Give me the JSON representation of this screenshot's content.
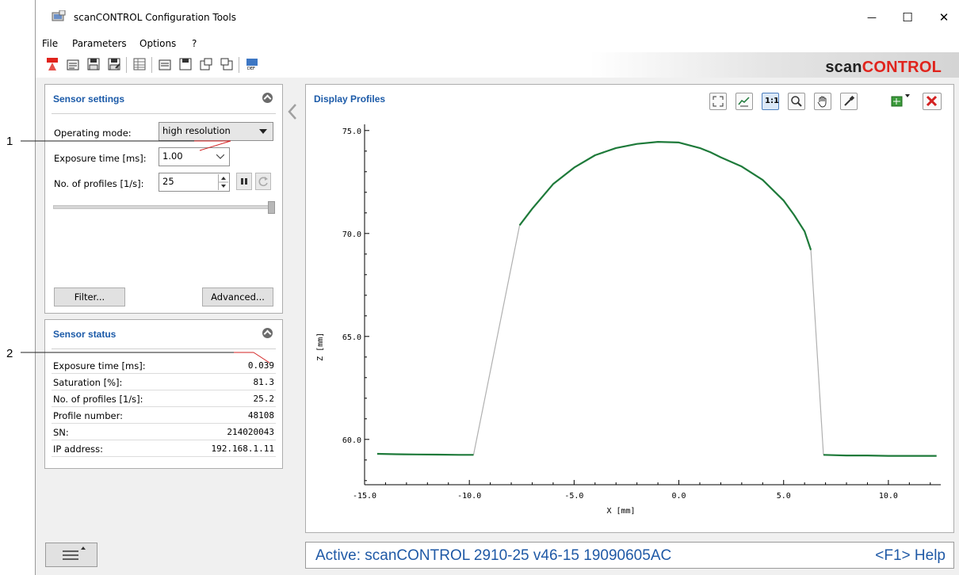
{
  "window": {
    "title": "scanCONTROL Configuration Tools",
    "minimize": "—",
    "maximize": "☐",
    "close": "✕"
  },
  "menu": [
    "File",
    "Parameters",
    "Options",
    "?"
  ],
  "toolbar": {
    "icons": [
      "sensor-icon",
      "open-icon",
      "save-icon",
      "save-as-icon",
      "table-icon",
      "load-settings-icon",
      "save-settings-icon",
      "export-icon",
      "import-icon",
      "default-icon"
    ],
    "logo_part1": "scan",
    "logo_part2": "CONTROL",
    "logo_color": "#e0231c"
  },
  "sensor_settings": {
    "title": "Sensor settings",
    "operating_mode_label": "Operating mode:",
    "operating_mode_value": "high resolution",
    "exposure_label": "Exposure time [ms]:",
    "exposure_value": "1.00",
    "profiles_label": "No. of profiles [1/s]:",
    "profiles_value": "25",
    "slider_level": 1.0,
    "filter_button": "Filter...",
    "advanced_button": "Advanced..."
  },
  "sensor_status": {
    "title": "Sensor status",
    "rows": [
      {
        "key": "Exposure time [ms]:",
        "value": "0.039"
      },
      {
        "key": "Saturation [%]:",
        "value": "81.3"
      },
      {
        "key": "No. of profiles [1/s]:",
        "value": "25.2"
      },
      {
        "key": "Profile number:",
        "value": "48108"
      },
      {
        "key": "SN:",
        "value": "214020043"
      },
      {
        "key": "IP address:",
        "value": "192.168.1.11"
      }
    ]
  },
  "callouts": [
    "1",
    "2"
  ],
  "display": {
    "title": "Display Profiles",
    "zoom_label": "1:1"
  },
  "chart_data": {
    "type": "line",
    "xlabel": "X [mm]",
    "ylabel": "Z [mm]",
    "xlim": [
      -15.0,
      12.5
    ],
    "ylim": [
      57.8,
      75.3
    ],
    "xticks": [
      "-15.0",
      "-10.0",
      "-5.0",
      "0.0",
      "5.0",
      "10.0"
    ],
    "xtick_values": [
      -15,
      -10,
      -5,
      0,
      5,
      10
    ],
    "yticks": [
      "60.0",
      "65.0",
      "70.0",
      "75.0"
    ],
    "ytick_values": [
      60,
      65,
      70,
      75
    ],
    "series_color": "#1e7a3a",
    "connector_color": "#b0b0b0",
    "series": [
      {
        "x": [
          -14.4,
          -13.5,
          -12.5,
          -11.5,
          -10.5,
          -9.8
        ],
        "y": [
          59.3,
          59.28,
          59.27,
          59.26,
          59.25,
          59.25
        ]
      },
      {
        "x": [
          -7.6,
          -7.0,
          -6.0,
          -5.0,
          -4.0,
          -3.0,
          -2.0,
          -1.0,
          0.0,
          1.0,
          1.5,
          2.0,
          3.0,
          4.0,
          5.0,
          5.5,
          6.0,
          6.3
        ],
        "y": [
          70.4,
          71.2,
          72.4,
          73.2,
          73.8,
          74.15,
          74.35,
          74.45,
          74.42,
          74.15,
          73.95,
          73.7,
          73.25,
          72.6,
          71.6,
          70.9,
          70.1,
          69.2
        ]
      },
      {
        "x": [
          6.9,
          8.0,
          9.0,
          10.0,
          11.0,
          12.3
        ],
        "y": [
          59.25,
          59.22,
          59.22,
          59.2,
          59.2,
          59.2
        ]
      }
    ]
  },
  "statusbar": {
    "active": "Active: scanCONTROL 2910-25 v46-15 19090605AC",
    "help": "<F1> Help"
  }
}
